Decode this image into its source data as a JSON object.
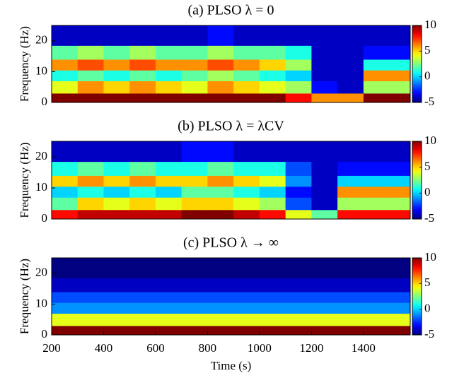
{
  "chart_data": [
    {
      "type": "heatmap",
      "title": "(a) PLSO λ = 0",
      "ylabel": "Frequency (Hz)",
      "colormap": "jet",
      "x": [
        250,
        350,
        450,
        550,
        650,
        750,
        850,
        950,
        1050,
        1150,
        1250,
        1350,
        1450,
        1550
      ],
      "y": [
        1,
        5,
        9,
        12,
        16,
        21
      ],
      "z": [
        [
          10,
          10,
          10,
          10,
          10,
          10,
          10,
          10,
          10,
          8,
          6,
          6,
          10,
          10
        ],
        [
          4,
          6,
          5,
          6,
          5,
          4,
          6,
          5,
          4,
          3,
          -3,
          -4,
          3,
          3
        ],
        [
          1,
          2,
          1,
          2,
          1,
          2,
          3,
          2,
          1,
          0,
          -4,
          -4,
          6,
          6
        ],
        [
          6,
          7,
          6,
          7,
          6,
          6,
          7,
          6,
          5,
          3,
          -4,
          -4,
          1,
          1
        ],
        [
          2,
          3,
          2,
          3,
          2,
          2,
          3,
          2,
          2,
          1,
          -4,
          -4,
          -3,
          -3
        ],
        [
          -4,
          -4,
          -4,
          -4,
          -4,
          -4,
          -3,
          -4,
          -4,
          -4,
          -4,
          -4,
          -4,
          -4
        ]
      ],
      "xlim": [
        200,
        1580
      ],
      "ylim": [
        0,
        25
      ],
      "yticks": [
        0,
        10,
        20
      ],
      "clim": [
        -5,
        10
      ],
      "cticks": [
        -5,
        0,
        5,
        10
      ]
    },
    {
      "type": "heatmap",
      "title": "(b) PLSO λ = λCV",
      "ylabel": "Frequency (Hz)",
      "colormap": "jet",
      "x": [
        250,
        350,
        450,
        550,
        650,
        750,
        850,
        950,
        1050,
        1150,
        1250,
        1350,
        1450,
        1550
      ],
      "y": [
        1,
        5,
        9,
        12,
        16,
        21
      ],
      "z": [
        [
          8,
          9,
          9,
          9,
          9,
          10,
          10,
          9,
          8,
          4,
          2,
          8,
          8,
          8
        ],
        [
          2,
          5,
          4,
          5,
          4,
          5,
          5,
          4,
          3,
          -2,
          -4,
          3,
          3,
          3
        ],
        [
          0,
          1,
          0,
          1,
          0,
          2,
          2,
          1,
          0,
          -3,
          -4,
          6,
          6,
          6
        ],
        [
          5,
          6,
          5,
          6,
          5,
          5,
          6,
          5,
          4,
          -1,
          -4,
          0,
          0,
          0
        ],
        [
          1,
          2,
          1,
          2,
          1,
          1,
          2,
          1,
          1,
          -2,
          -4,
          -3,
          -3,
          -3
        ],
        [
          -4,
          -4,
          -4,
          -4,
          -4,
          -3,
          -3,
          -4,
          -4,
          -4,
          -4,
          -4,
          -4,
          -4
        ]
      ],
      "xlim": [
        200,
        1580
      ],
      "ylim": [
        0,
        25
      ],
      "yticks": [
        0,
        10,
        20
      ],
      "clim": [
        -5,
        10
      ],
      "cticks": [
        -5,
        0,
        5,
        10
      ]
    },
    {
      "type": "heatmap",
      "title": "(c) PLSO λ → ∞",
      "ylabel": "Frequency (Hz)",
      "xlabel": "Time (s)",
      "colormap": "jet",
      "x": [
        250,
        350,
        450,
        550,
        650,
        750,
        850,
        950,
        1050,
        1150,
        1250,
        1350,
        1450,
        1550
      ],
      "y": [
        1,
        5,
        9,
        12,
        16,
        21
      ],
      "z": [
        [
          10,
          10,
          10,
          10,
          10,
          10,
          10,
          10,
          10,
          10,
          10,
          10,
          10,
          10
        ],
        [
          4,
          4,
          4,
          4,
          4,
          4,
          4,
          4,
          4,
          4,
          4,
          4,
          4,
          4
        ],
        [
          -1,
          -1,
          -1,
          -1,
          -1,
          -1,
          -1,
          -1,
          -1,
          -1,
          -1,
          -1,
          -1,
          -1
        ],
        [
          -2,
          -2,
          -2,
          -2,
          -2,
          -2,
          -2,
          -2,
          -2,
          -2,
          -2,
          -2,
          -2,
          -2
        ],
        [
          -4,
          -4,
          -4,
          -4,
          -4,
          -4,
          -4,
          -4,
          -4,
          -4,
          -4,
          -4,
          -4,
          -4
        ],
        [
          -5,
          -5,
          -5,
          -5,
          -5,
          -5,
          -5,
          -5,
          -5,
          -5,
          -5,
          -5,
          -5,
          -5
        ]
      ],
      "xlim": [
        200,
        1580
      ],
      "xticks": [
        200,
        400,
        600,
        800,
        1000,
        1200,
        1400
      ],
      "ylim": [
        0,
        25
      ],
      "yticks": [
        0,
        10,
        20
      ],
      "clim": [
        -5,
        10
      ],
      "cticks": [
        -5,
        0,
        5,
        10
      ]
    }
  ]
}
